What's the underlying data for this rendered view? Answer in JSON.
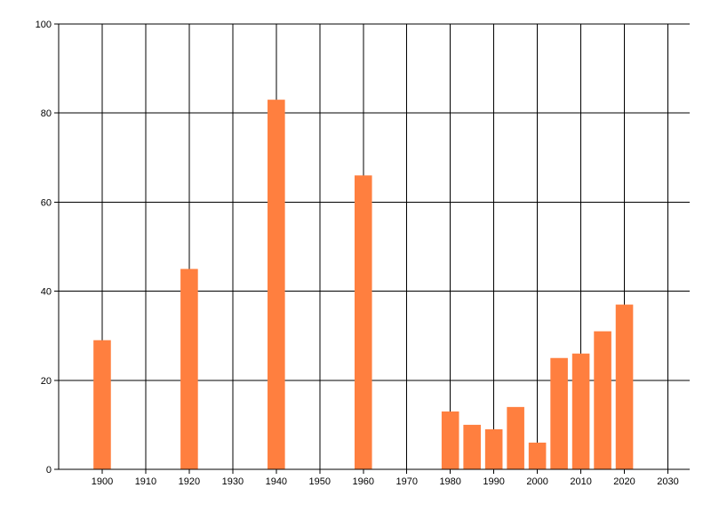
{
  "chart_data": {
    "type": "bar",
    "title": "",
    "xlabel": "",
    "ylabel": "",
    "x": [
      1900,
      1920,
      1940,
      1960,
      1980,
      1985,
      1990,
      1995,
      2000,
      2005,
      2010,
      2015,
      2020
    ],
    "values": [
      29,
      45,
      83,
      66,
      13,
      10,
      9,
      14,
      6,
      25,
      26,
      31,
      37
    ],
    "xlim": [
      1890,
      2035
    ],
    "ylim": [
      0,
      100
    ],
    "x_ticks": [
      1900,
      1910,
      1920,
      1930,
      1940,
      1950,
      1960,
      1970,
      1980,
      1990,
      2000,
      2010,
      2020,
      2030
    ],
    "y_ticks": [
      0,
      20,
      40,
      60,
      80,
      100
    ],
    "bar_width_years": 4,
    "grid": true,
    "legend": "none",
    "bar_color": "#ff7f3f",
    "grid_color": "#000000"
  }
}
